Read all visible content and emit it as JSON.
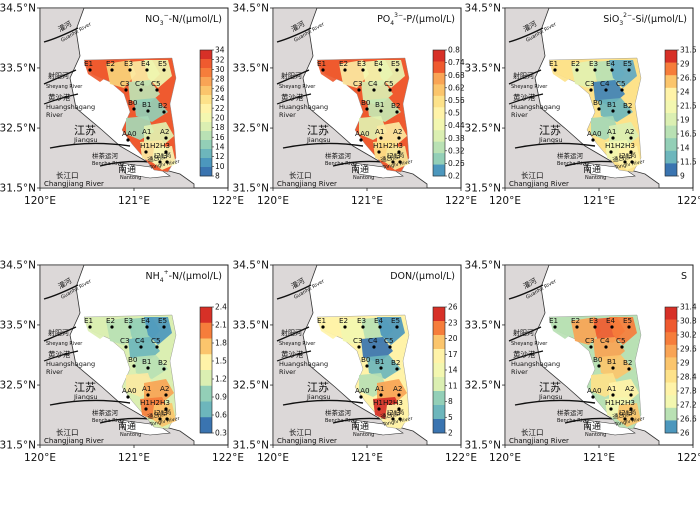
{
  "axes": {
    "lat_ticks": [
      "34.5°N",
      "33.5°N",
      "32.5°N",
      "31.5°N"
    ],
    "lon_ticks": [
      "120°E",
      "121°E",
      "122°E"
    ]
  },
  "stations": {
    "row1": [
      "E1",
      "E2",
      "E3",
      "E4",
      "E5"
    ],
    "row2": [
      "C3",
      "C4",
      "C5"
    ],
    "row3": [
      "B0",
      "B1",
      "B2"
    ],
    "row4": [
      "AA0",
      "A1",
      "A2"
    ],
    "row5": [
      "H1H2",
      "H3"
    ],
    "row6": [
      "I2",
      "I3"
    ]
  },
  "map_labels": {
    "guanhe_cn": "灌河",
    "guanhe_en": "Guanhe River",
    "sheyang_cn": "射阳河",
    "sheyang_en": "Sheyang River",
    "huangshagang_cn": "黄沙港",
    "huangshagang_en1": "Huangshagang",
    "huangshagang_en2": "River",
    "jiangsu_cn": "江苏",
    "jiangsu_en": "Jiangsu",
    "bencha_cn": "栟茶运河",
    "bencha_en": "Bencha River",
    "nantong_cn": "南通",
    "nantong_en": "Nantong",
    "tonglv_cn": "通吕运河",
    "tonglv_en": "Tonglv River",
    "changjiang_cn": "长江口",
    "changjiang_en": "Changjiang River"
  },
  "panels": [
    {
      "id": "no3",
      "title_main": "NO",
      "title_sub": "3",
      "title_sup": "−",
      "title_rest": "-N/(μmol/L)",
      "colorbar_ticks": [
        "34",
        "32",
        "30",
        "28",
        "26",
        "24",
        "22",
        "20",
        "18",
        "16",
        "14",
        "12",
        "10",
        "8"
      ],
      "colorbar": [
        "#d73027",
        "#ef5a2f",
        "#f67d3b",
        "#f9a455",
        "#fbc56c",
        "#fde28a",
        "#fff3a8",
        "#f3f7b0",
        "#dbefb2",
        "#b9e1b4",
        "#93cfb7",
        "#6db6bc",
        "#4c97bd",
        "#3a74b0"
      ],
      "colors": [
        "#ef5a2f",
        "#f9d37a",
        "#fbe9a2",
        "#eef6b0",
        "#bfe3b4",
        "#93cfb7",
        "#a5d8b6",
        "#e2f1b0",
        "#fbe9a2",
        "#f7f6b4"
      ]
    },
    {
      "id": "po4",
      "title_main": "PO",
      "title_sub": "4",
      "title_sup": "3−",
      "title_rest": "-P/(μmol/L)",
      "colorbar_ticks": [
        "0.8",
        "0.74",
        "0.68",
        "0.62",
        "0.56",
        "0.5",
        "0.44",
        "0.38",
        "0.32",
        "0.26",
        "0.2"
      ],
      "colorbar": [
        "#d73027",
        "#ef5a2f",
        "#f9a455",
        "#fbc56c",
        "#fde28a",
        "#fff3a8",
        "#f3f7b0",
        "#dbefb2",
        "#b9e1b4",
        "#93cfb7",
        "#4c97bd"
      ],
      "colors": [
        "#ef5a2f",
        "#fbe9a2",
        "#f3f7b0",
        "#e8f4b2",
        "#dbefb2",
        "#c6e8b3",
        "#e2f1b0",
        "#fbe9a2",
        "#fde28a",
        "#f6e79a"
      ]
    },
    {
      "id": "sio3",
      "title_main": "SiO",
      "title_sub": "3",
      "title_sup": "2−",
      "title_rest": "-Si/(μmol/L)",
      "colorbar_ticks": [
        "31.5",
        "29",
        "26.5",
        "24",
        "21.5",
        "19",
        "16.5",
        "14",
        "11.5",
        "9"
      ],
      "colorbar": [
        "#d73027",
        "#f67d3b",
        "#fbc56c",
        "#fff3a8",
        "#f3f7b0",
        "#dbefb2",
        "#b9e1b4",
        "#93cfb7",
        "#6db6bc",
        "#3a74b0"
      ],
      "colors": [
        "#fde28a",
        "#e2f1b0",
        "#b9e1b4",
        "#5fa8c2",
        "#3f82b6",
        "#6db6bc",
        "#a5d8b6",
        "#dbefb2",
        "#f3f7b0",
        "#fff3a8"
      ]
    },
    {
      "id": "nh4",
      "title_main": "NH",
      "title_sub": "4",
      "title_sup": "+",
      "title_rest": "-N/(μmol/L)",
      "colorbar_ticks": [
        "2.4",
        "2.1",
        "1.8",
        "1.5",
        "1.2",
        "0.9",
        "0.6",
        "0.3"
      ],
      "colorbar": [
        "#d73027",
        "#f67d3b",
        "#fbc56c",
        "#fff3a8",
        "#dbefb2",
        "#93cfb7",
        "#6db6bc",
        "#3a74b0"
      ],
      "colors": [
        "#dbefb2",
        "#b9e1b4",
        "#93cfb7",
        "#4c97bd",
        "#6db6bc",
        "#b9e1b4",
        "#fbe9a2",
        "#f9a455",
        "#f67d3b",
        "#fbc56c"
      ]
    },
    {
      "id": "don",
      "title_main": "DON/(μmol/L)",
      "title_sub": "",
      "title_sup": "",
      "title_rest": "",
      "colorbar_ticks": [
        "26",
        "23",
        "20",
        "17",
        "14",
        "11",
        "8",
        "5",
        "2"
      ],
      "colorbar": [
        "#d73027",
        "#f67d3b",
        "#fbc56c",
        "#fff3a8",
        "#f3f7b0",
        "#dbefb2",
        "#93cfb7",
        "#6db6bc",
        "#3a74b0"
      ],
      "colors": [
        "#fff3a8",
        "#f3f7b0",
        "#b9e1b4",
        "#4c97bd",
        "#3a74b0",
        "#6db6bc",
        "#b9e1b4",
        "#f9a455",
        "#d73027",
        "#fff3a8"
      ]
    },
    {
      "id": "sal",
      "title_main": "S",
      "title_sub": "",
      "title_sup": "",
      "title_rest": "",
      "colorbar_ticks": [
        "31.4",
        "30.8",
        "30.2",
        "29.6",
        "29",
        "28.4",
        "27.8",
        "27.2",
        "26.6",
        "26"
      ],
      "colorbar": [
        "#d73027",
        "#ef5a2f",
        "#f67d3b",
        "#f9a455",
        "#fbc56c",
        "#fde28a",
        "#fff3a8",
        "#f3f7b0",
        "#b9e1b4",
        "#4c97bd"
      ],
      "colors": [
        "#b9e1b4",
        "#f9a455",
        "#ef5a2f",
        "#f67d3b",
        "#f9a455",
        "#fbc56c",
        "#fde28a",
        "#fff3a8",
        "#f3f7b0",
        "#fbc56c"
      ]
    }
  ]
}
